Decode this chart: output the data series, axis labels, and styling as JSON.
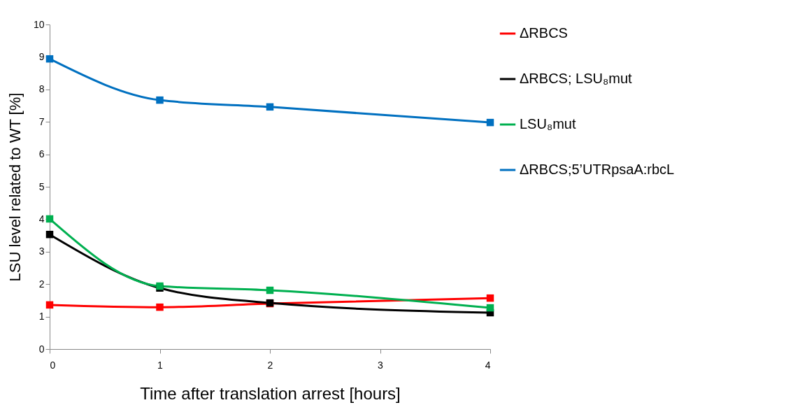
{
  "chart_data": {
    "type": "line",
    "xlabel": "Time after translation arrest [hours]",
    "ylabel": "LSU level related to WT [%]",
    "xlim": [
      0,
      4
    ],
    "xticks": [
      0,
      1,
      2,
      3,
      4
    ],
    "ylim": [
      0,
      10
    ],
    "yticks": [
      0,
      1,
      2,
      3,
      4,
      5,
      6,
      7,
      8,
      9,
      10
    ],
    "grid": false,
    "legend": "right",
    "marker": "square",
    "line_style": "solid",
    "x": [
      0,
      1,
      2,
      4
    ],
    "series": [
      {
        "name": "ΔRBCS",
        "color": "#ff0000",
        "values": [
          1.36,
          1.29,
          1.4,
          1.57
        ]
      },
      {
        "name": "ΔRBCS; LSU₈mut",
        "color": "#000000",
        "values": [
          3.53,
          1.88,
          1.42,
          1.12
        ]
      },
      {
        "name": "LSU₈mut",
        "color": "#00b050",
        "values": [
          4.01,
          1.94,
          1.81,
          1.27
        ]
      },
      {
        "name": "ΔRBCS;5’UTRpsaA:rbcL",
        "color": "#0070c0",
        "values": [
          8.94,
          7.67,
          7.46,
          6.98
        ]
      }
    ]
  }
}
